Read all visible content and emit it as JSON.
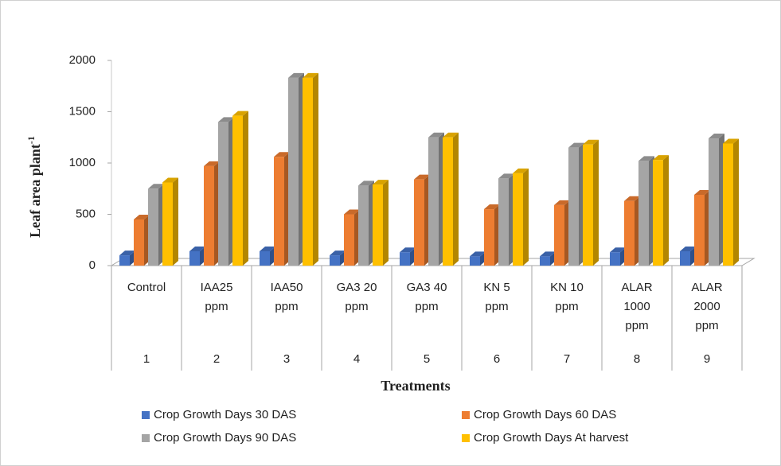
{
  "chart_data": {
    "type": "bar3d",
    "y_label": "Leaf area plant",
    "y_label_sup": "-1",
    "x_label": "Treatments",
    "categories": [
      [
        "Control"
      ],
      [
        "IAA25",
        "ppm"
      ],
      [
        "IAA50",
        "ppm"
      ],
      [
        "GA3 20",
        "ppm"
      ],
      [
        "GA3 40",
        "ppm"
      ],
      [
        "KN 5",
        "ppm"
      ],
      [
        "KN 10",
        "ppm"
      ],
      [
        "ALAR",
        "1000",
        "ppm"
      ],
      [
        "ALAR",
        "2000",
        "ppm"
      ]
    ],
    "category_groups": [
      "1",
      "2",
      "3",
      "4",
      "5",
      "6",
      "7",
      "8",
      "9"
    ],
    "series": [
      {
        "name": "Crop Growth Days 30 DAS",
        "color": "#4472c4",
        "values": [
          100,
          140,
          140,
          100,
          130,
          90,
          90,
          130,
          140
        ]
      },
      {
        "name": "Crop Growth Days 60 DAS",
        "color": "#ed7d31",
        "values": [
          450,
          970,
          1060,
          500,
          840,
          550,
          590,
          630,
          690
        ]
      },
      {
        "name": "Crop Growth Days 90 DAS",
        "color": "#a5a5a5",
        "values": [
          750,
          1400,
          1830,
          780,
          1250,
          850,
          1150,
          1020,
          1240
        ]
      },
      {
        "name": "Crop Growth Days At harvest",
        "color": "#ffc000",
        "values": [
          810,
          1460,
          1830,
          790,
          1250,
          900,
          1180,
          1030,
          1190
        ]
      }
    ],
    "ylim": [
      0,
      2000
    ],
    "yticks": [
      0,
      500,
      1000,
      1500,
      2000
    ],
    "grid": false
  }
}
